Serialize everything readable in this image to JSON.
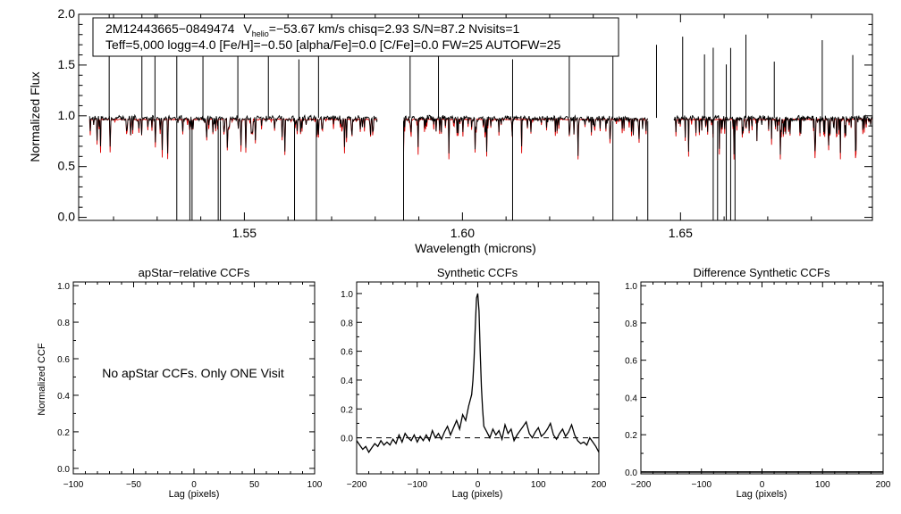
{
  "chart_data": [
    {
      "type": "line",
      "id": "spectrum",
      "xlabel": "Wavelength (microns)",
      "ylabel": "Normalized Flux",
      "xlim": [
        1.512,
        1.694
      ],
      "ylim": [
        -0.03,
        2.0
      ],
      "x_ticks": [
        "1.55",
        "1.60",
        "1.65"
      ],
      "y_ticks": [
        "0.0",
        "0.5",
        "1.0",
        "1.5",
        "2.0"
      ],
      "annotation": {
        "star_id": "2M12443665−0849474",
        "v_symbol": "V",
        "v_subscript": "helio",
        "line1_rest": "=−53.67 km/s  chisq=2.93  S/N=87.2  Nvisits=1",
        "line2": "Teff=5,000 logg=4.0 [Fe/H]=−0.50 [alpha/Fe]=0.0 [C/Fe]=0.0 FW=25 AUTOFW=25"
      },
      "chips": [
        [
          1.5145,
          1.5805
        ],
        [
          1.5865,
          1.6425
        ],
        [
          1.6485,
          1.6955
        ]
      ],
      "series": [
        {
          "role": "observed",
          "color": "#000000"
        },
        {
          "role": "model",
          "color": "#dd0000"
        }
      ],
      "spikes_up": [
        1.519,
        1.5265,
        1.5295,
        1.5345,
        1.5405,
        1.5485,
        1.5555,
        1.5625,
        1.567,
        1.588,
        1.5945,
        1.6115,
        1.6245,
        1.6345,
        1.6445,
        1.6505,
        1.6555,
        1.6575,
        1.6605,
        1.6615,
        1.665,
        1.6715,
        1.6825,
        1.6895
      ],
      "spikes_down": [
        1.5345,
        1.5375,
        1.538,
        1.544,
        1.5445,
        1.5615,
        1.5665,
        1.5865,
        1.6115,
        1.6345,
        1.6425,
        1.6575,
        1.6585,
        1.6605,
        1.6615,
        1.6625
      ]
    },
    {
      "type": "line",
      "id": "apstar",
      "title": "apStar−relative CCFs",
      "xlabel": "Lag (pixels)",
      "ylabel": "Normalized CCF",
      "xlim": [
        -100,
        100
      ],
      "ylim": [
        -0.03,
        1.02
      ],
      "x_ticks": [
        "−100",
        "−50",
        "0",
        "50",
        "100"
      ],
      "y_ticks": [
        "0.0",
        "0.2",
        "0.4",
        "0.6",
        "0.8",
        "1.0"
      ],
      "message": "No apStar CCFs.  Only ONE Visit"
    },
    {
      "type": "line",
      "id": "synthetic",
      "title": "Synthetic CCFs",
      "xlabel": "Lag (pixels)",
      "xlim": [
        -200,
        200
      ],
      "ylim": [
        -0.25,
        1.08
      ],
      "x_ticks": [
        "−200",
        "−100",
        "0",
        "100",
        "200"
      ],
      "y_ticks": [
        "0.0",
        "0.2",
        "0.4",
        "0.6",
        "0.8",
        "1.0"
      ],
      "baseline": 0.0,
      "x": [
        -200,
        -195,
        -190,
        -185,
        -180,
        -175,
        -170,
        -165,
        -160,
        -155,
        -150,
        -145,
        -140,
        -135,
        -130,
        -125,
        -120,
        -115,
        -110,
        -105,
        -100,
        -95,
        -90,
        -85,
        -80,
        -75,
        -70,
        -65,
        -60,
        -55,
        -50,
        -45,
        -40,
        -35,
        -30,
        -25,
        -20,
        -15,
        -10,
        -8,
        -6,
        -4,
        -2,
        0,
        2,
        4,
        6,
        8,
        10,
        15,
        20,
        25,
        30,
        35,
        40,
        45,
        50,
        55,
        60,
        65,
        70,
        75,
        80,
        85,
        90,
        95,
        100,
        105,
        110,
        115,
        120,
        125,
        130,
        135,
        140,
        145,
        150,
        155,
        160,
        165,
        170,
        175,
        180,
        185,
        190,
        195,
        200
      ],
      "y": [
        -0.02,
        -0.05,
        -0.08,
        -0.06,
        -0.1,
        -0.07,
        -0.04,
        -0.06,
        -0.02,
        -0.05,
        -0.03,
        -0.05,
        -0.01,
        -0.04,
        0.02,
        -0.03,
        0.03,
        0.0,
        -0.02,
        0.02,
        -0.03,
        0.01,
        -0.02,
        0.02,
        -0.02,
        0.05,
        0.0,
        0.03,
        -0.01,
        0.04,
        0.08,
        0.02,
        0.07,
        0.12,
        0.06,
        0.16,
        0.12,
        0.22,
        0.3,
        0.4,
        0.55,
        0.78,
        0.97,
        1.0,
        0.88,
        0.6,
        0.35,
        0.2,
        0.08,
        0.04,
        0.0,
        0.06,
        0.02,
        0.05,
        -0.01,
        0.09,
        0.03,
        0.06,
        -0.02,
        0.02,
        0.05,
        0.08,
        0.11,
        0.03,
        0.0,
        0.04,
        0.07,
        0.01,
        0.03,
        0.06,
        0.1,
        0.02,
        -0.01,
        0.03,
        0.06,
        0.01,
        0.04,
        0.09,
        0.02,
        -0.02,
        -0.04,
        -0.03,
        -0.05,
        0.0,
        -0.03,
        -0.06,
        -0.1
      ]
    },
    {
      "type": "line",
      "id": "difference",
      "title": "Difference Synthetic CCFs",
      "xlabel": "Lag (pixels)",
      "xlim": [
        -200,
        200
      ],
      "ylim": [
        -0.01,
        1.02
      ],
      "x_ticks": [
        "−200",
        "−100",
        "0",
        "100",
        "200"
      ],
      "y_ticks": [
        "0.0",
        "0.2",
        "0.4",
        "0.6",
        "0.8",
        "1.0"
      ],
      "x": [
        -200,
        200
      ],
      "y": [
        0.0,
        0.0
      ]
    }
  ]
}
